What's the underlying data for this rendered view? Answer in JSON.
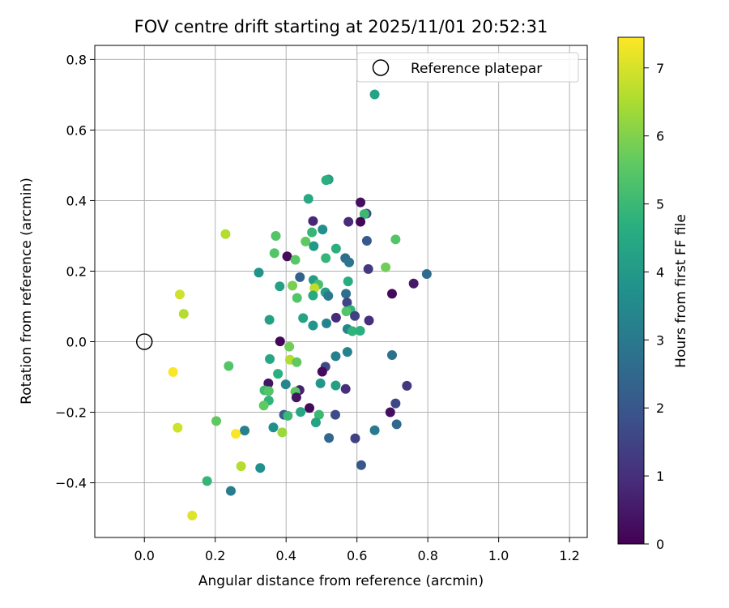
{
  "chart_data": {
    "type": "scatter",
    "title": "FOV centre drift starting at 2025/11/01 20:52:31",
    "xlabel": "Angular distance from reference (arcmin)",
    "ylabel": "Rotation from reference (arcmin)",
    "xlim": [
      -0.14,
      1.25
    ],
    "ylim": [
      -0.555,
      0.84
    ],
    "xticks": [
      0.0,
      0.2,
      0.4,
      0.6,
      0.8,
      1.0,
      1.2
    ],
    "xtick_labels": [
      "0.0",
      "0.2",
      "0.4",
      "0.6",
      "0.8",
      "1.0",
      "1.2"
    ],
    "yticks": [
      -0.4,
      -0.2,
      0.0,
      0.2,
      0.4,
      0.6,
      0.8
    ],
    "ytick_labels": [
      "−0.4",
      "−0.2",
      "0.0",
      "0.2",
      "0.4",
      "0.6",
      "0.8"
    ],
    "grid": true,
    "legend": {
      "position": "top-right",
      "entries": [
        {
          "label": "Reference platepar",
          "marker": "open-circle"
        }
      ]
    },
    "reference_point": {
      "x": 0.0,
      "y": 0.0,
      "label": "Reference platepar"
    },
    "colorbar": {
      "label": "Hours from first FF file",
      "colormap": "viridis",
      "range": [
        0,
        7.45
      ],
      "ticks": [
        0,
        1,
        2,
        3,
        4,
        5,
        6,
        7
      ],
      "tick_labels": [
        "0",
        "1",
        "2",
        "3",
        "4",
        "5",
        "6",
        "7"
      ]
    },
    "columns": [
      "x",
      "y",
      "hours"
    ],
    "points": [
      [
        0.65,
        0.701,
        4.3
      ],
      [
        0.52,
        0.46,
        4.1
      ],
      [
        0.513,
        0.458,
        4.7
      ],
      [
        0.463,
        0.405,
        4.5
      ],
      [
        0.61,
        0.395,
        0.3
      ],
      [
        0.627,
        0.363,
        1.7
      ],
      [
        0.621,
        0.362,
        5.0
      ],
      [
        0.476,
        0.342,
        0.8
      ],
      [
        0.576,
        0.34,
        0.9
      ],
      [
        0.61,
        0.34,
        0.1
      ],
      [
        0.503,
        0.318,
        3.7
      ],
      [
        0.473,
        0.31,
        4.9
      ],
      [
        0.229,
        0.305,
        6.6
      ],
      [
        0.371,
        0.3,
        5.4
      ],
      [
        0.709,
        0.29,
        5.4
      ],
      [
        0.628,
        0.286,
        2.1
      ],
      [
        0.455,
        0.284,
        5.6
      ],
      [
        0.478,
        0.271,
        4.0
      ],
      [
        0.541,
        0.264,
        4.7
      ],
      [
        0.367,
        0.251,
        5.4
      ],
      [
        0.403,
        0.242,
        0.2
      ],
      [
        0.512,
        0.237,
        4.9
      ],
      [
        0.567,
        0.237,
        2.7
      ],
      [
        0.578,
        0.225,
        2.9
      ],
      [
        0.426,
        0.232,
        5.5
      ],
      [
        0.632,
        0.206,
        1.2
      ],
      [
        0.681,
        0.211,
        5.8
      ],
      [
        0.323,
        0.196,
        3.8
      ],
      [
        0.797,
        0.192,
        2.6
      ],
      [
        0.439,
        0.183,
        2.3
      ],
      [
        0.477,
        0.175,
        4.1
      ],
      [
        0.575,
        0.171,
        4.6
      ],
      [
        0.76,
        0.165,
        0.5
      ],
      [
        0.491,
        0.162,
        5.2
      ],
      [
        0.382,
        0.157,
        4.2
      ],
      [
        0.418,
        0.159,
        5.9
      ],
      [
        0.48,
        0.152,
        6.7
      ],
      [
        0.511,
        0.14,
        4.1
      ],
      [
        0.569,
        0.136,
        2.7
      ],
      [
        0.519,
        0.13,
        3.0
      ],
      [
        0.699,
        0.136,
        0.2
      ],
      [
        0.476,
        0.131,
        4.5
      ],
      [
        0.431,
        0.124,
        5.4
      ],
      [
        0.572,
        0.111,
        1.5
      ],
      [
        0.582,
        0.09,
        4.8
      ],
      [
        0.57,
        0.086,
        5.4
      ],
      [
        0.594,
        0.073,
        1.4
      ],
      [
        0.541,
        0.068,
        0.9
      ],
      [
        0.448,
        0.067,
        4.3
      ],
      [
        0.353,
        0.062,
        4.2
      ],
      [
        0.634,
        0.06,
        1.0
      ],
      [
        0.514,
        0.052,
        3.3
      ],
      [
        0.476,
        0.046,
        3.9
      ],
      [
        0.573,
        0.036,
        3.4
      ],
      [
        0.587,
        0.03,
        4.8
      ],
      [
        0.609,
        0.031,
        4.7
      ],
      [
        0.383,
        0.001,
        0.1
      ],
      [
        0.409,
        -0.014,
        5.8
      ],
      [
        0.573,
        -0.029,
        3.3
      ],
      [
        0.699,
        -0.038,
        2.8
      ],
      [
        0.54,
        -0.041,
        3.2
      ],
      [
        0.354,
        -0.049,
        4.4
      ],
      [
        0.411,
        -0.051,
        6.6
      ],
      [
        0.43,
        -0.058,
        5.6
      ],
      [
        0.238,
        -0.069,
        5.4
      ],
      [
        0.511,
        -0.071,
        1.6
      ],
      [
        0.081,
        -0.086,
        7.4
      ],
      [
        0.502,
        -0.085,
        0.2
      ],
      [
        0.377,
        -0.091,
        4.7
      ],
      [
        0.399,
        -0.121,
        3.4
      ],
      [
        0.35,
        -0.118,
        0.4
      ],
      [
        0.497,
        -0.118,
        3.9
      ],
      [
        0.54,
        -0.124,
        4.2
      ],
      [
        0.741,
        -0.125,
        1.2
      ],
      [
        0.568,
        -0.134,
        1.0
      ],
      [
        0.438,
        -0.137,
        0.7
      ],
      [
        0.339,
        -0.138,
        5.1
      ],
      [
        0.351,
        -0.14,
        5.4
      ],
      [
        0.426,
        -0.142,
        5.5
      ],
      [
        0.429,
        -0.158,
        0.4
      ],
      [
        0.351,
        -0.167,
        4.8
      ],
      [
        0.709,
        -0.175,
        1.6
      ],
      [
        0.337,
        -0.181,
        5.6
      ],
      [
        0.466,
        -0.188,
        0.2
      ],
      [
        0.441,
        -0.199,
        4.4
      ],
      [
        0.694,
        -0.2,
        0.3
      ],
      [
        0.394,
        -0.207,
        2.2
      ],
      [
        0.493,
        -0.207,
        5.0
      ],
      [
        0.405,
        -0.21,
        5.0
      ],
      [
        0.539,
        -0.207,
        1.7
      ],
      [
        0.203,
        -0.225,
        5.6
      ],
      [
        0.484,
        -0.229,
        4.3
      ],
      [
        0.712,
        -0.234,
        2.5
      ],
      [
        0.364,
        -0.243,
        3.7
      ],
      [
        0.094,
        -0.244,
        6.9
      ],
      [
        0.65,
        -0.251,
        3.0
      ],
      [
        0.283,
        -0.252,
        3.2
      ],
      [
        0.389,
        -0.257,
        6.3
      ],
      [
        0.258,
        -0.261,
        7.4
      ],
      [
        0.521,
        -0.273,
        2.5
      ],
      [
        0.595,
        -0.274,
        1.4
      ],
      [
        0.273,
        -0.353,
        6.6
      ],
      [
        0.327,
        -0.358,
        3.7
      ],
      [
        0.612,
        -0.35,
        2.0
      ],
      [
        0.177,
        -0.395,
        4.9
      ],
      [
        0.244,
        -0.423,
        3.1
      ],
      [
        0.135,
        -0.493,
        7.1
      ],
      [
        0.1,
        0.134,
        6.9
      ],
      [
        0.111,
        0.079,
        6.6
      ]
    ]
  }
}
